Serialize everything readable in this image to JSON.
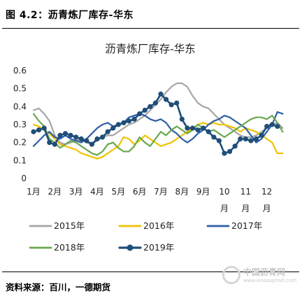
{
  "figure": {
    "caption": "图 4.2：沥青炼厂库存-华东",
    "source": "资料来源：百川，一德期货",
    "watermark": {
      "name": "中国沥青网",
      "url": "www.sinoasphalt.com"
    }
  },
  "chart_data": {
    "type": "line",
    "title": "沥青炼厂库存-华东",
    "xlabel": "",
    "ylabel": "",
    "x": [
      1,
      1.25,
      1.5,
      1.75,
      2,
      2.25,
      2.5,
      2.75,
      3,
      3.25,
      3.5,
      3.75,
      4,
      4.25,
      4.5,
      4.75,
      5,
      5.25,
      5.5,
      5.75,
      6,
      6.25,
      6.5,
      6.75,
      7,
      7.25,
      7.5,
      7.75,
      8,
      8.25,
      8.5,
      8.75,
      9,
      9.25,
      9.5,
      9.75,
      10,
      10.25,
      10.5,
      10.75,
      11,
      11.25,
      11.5,
      11.75,
      12,
      12.25,
      12.5,
      12.75
    ],
    "xticks": [
      {
        "pos": 1,
        "label": "1月"
      },
      {
        "pos": 2,
        "label": "2月"
      },
      {
        "pos": 3,
        "label": "3月"
      },
      {
        "pos": 4,
        "label": "4月"
      },
      {
        "pos": 5,
        "label": "5月"
      },
      {
        "pos": 6,
        "label": "6月"
      },
      {
        "pos": 7,
        "label": "7月"
      },
      {
        "pos": 8,
        "label": "8月"
      },
      {
        "pos": 9,
        "label": "9月"
      },
      {
        "pos": 10,
        "label": "10\n月"
      },
      {
        "pos": 11,
        "label": "11\n月"
      },
      {
        "pos": 12,
        "label": "12\n月"
      }
    ],
    "xlim": [
      1,
      13
    ],
    "ylim": [
      0,
      0.6
    ],
    "yticks": [
      "0",
      "0.1",
      "0.2",
      "0.3",
      "0.4",
      "0.5",
      "0.6"
    ],
    "grid": false,
    "legend_position": "bottom",
    "series": [
      {
        "name": "2015年",
        "color": "#a6a6a6",
        "width": 2.2,
        "marker": false,
        "values": [
          0.38,
          0.39,
          0.36,
          0.32,
          0.24,
          0.2,
          0.19,
          0.2,
          0.21,
          0.22,
          0.2,
          0.19,
          0.21,
          0.23,
          0.24,
          0.24,
          0.26,
          0.28,
          0.3,
          0.31,
          0.33,
          0.35,
          0.38,
          0.41,
          0.44,
          0.48,
          0.51,
          0.53,
          0.53,
          0.51,
          0.46,
          0.42,
          0.4,
          0.39,
          0.36,
          0.33,
          0.3,
          0.28,
          0.26,
          0.24,
          0.23,
          0.23,
          0.24,
          0.26,
          0.28,
          0.3,
          0.31,
          0.28
        ]
      },
      {
        "name": "2016年",
        "color": "#f2c200",
        "width": 2.2,
        "marker": false,
        "values": [
          0.3,
          0.29,
          0.27,
          0.25,
          0.22,
          0.19,
          0.18,
          0.17,
          0.16,
          0.14,
          0.13,
          0.12,
          0.11,
          0.12,
          0.14,
          0.16,
          0.18,
          0.23,
          0.22,
          0.19,
          0.21,
          0.24,
          0.22,
          0.2,
          0.18,
          0.19,
          0.2,
          0.22,
          0.24,
          0.26,
          0.28,
          0.3,
          0.31,
          0.3,
          0.31,
          0.3,
          0.3,
          0.29,
          0.28,
          0.26,
          0.28,
          0.27,
          0.26,
          0.24,
          0.22,
          0.2,
          0.14,
          0.14
        ]
      },
      {
        "name": "2017年",
        "color": "#2e5fa5",
        "width": 2.2,
        "marker": false,
        "values": [
          0.18,
          0.21,
          0.24,
          0.26,
          0.23,
          0.22,
          0.24,
          0.22,
          0.21,
          0.2,
          0.22,
          0.25,
          0.28,
          0.3,
          0.31,
          0.29,
          0.3,
          0.31,
          0.34,
          0.35,
          0.36,
          0.35,
          0.33,
          0.32,
          0.33,
          0.31,
          0.27,
          0.25,
          0.22,
          0.2,
          0.22,
          0.25,
          0.27,
          0.3,
          0.32,
          0.33,
          0.35,
          0.34,
          0.32,
          0.3,
          0.28,
          0.24,
          0.2,
          0.22,
          0.26,
          0.3,
          0.37,
          0.36
        ]
      },
      {
        "name": "2018年",
        "color": "#6aa84f",
        "width": 2.2,
        "marker": false,
        "values": [
          0.36,
          0.32,
          0.29,
          0.22,
          0.2,
          0.17,
          0.19,
          0.21,
          0.2,
          0.18,
          0.16,
          0.14,
          0.13,
          0.15,
          0.19,
          0.2,
          0.17,
          0.15,
          0.15,
          0.18,
          0.23,
          0.2,
          0.18,
          0.22,
          0.26,
          0.24,
          0.27,
          0.29,
          0.27,
          0.25,
          0.27,
          0.3,
          0.28,
          0.26,
          0.27,
          0.25,
          0.23,
          0.25,
          0.27,
          0.29,
          0.31,
          0.33,
          0.34,
          0.34,
          0.33,
          0.35,
          0.31,
          0.26
        ]
      },
      {
        "name": "2019年",
        "color": "#1f4e79",
        "width": 2.6,
        "marker": true,
        "values": [
          0.26,
          0.27,
          0.28,
          0.2,
          0.19,
          0.24,
          0.25,
          0.24,
          0.23,
          0.22,
          0.21,
          0.19,
          0.22,
          0.23,
          0.26,
          0.28,
          0.3,
          0.31,
          0.32,
          0.33,
          0.36,
          0.38,
          0.4,
          0.42,
          0.47,
          0.44,
          0.41,
          0.42,
          0.33,
          0.28,
          0.28,
          0.27,
          0.28,
          0.26,
          0.23,
          0.21,
          0.14,
          0.15,
          0.18,
          0.22,
          0.22,
          0.21,
          0.22,
          0.24,
          0.29,
          0.3,
          0.29,
          null
        ]
      }
    ]
  }
}
